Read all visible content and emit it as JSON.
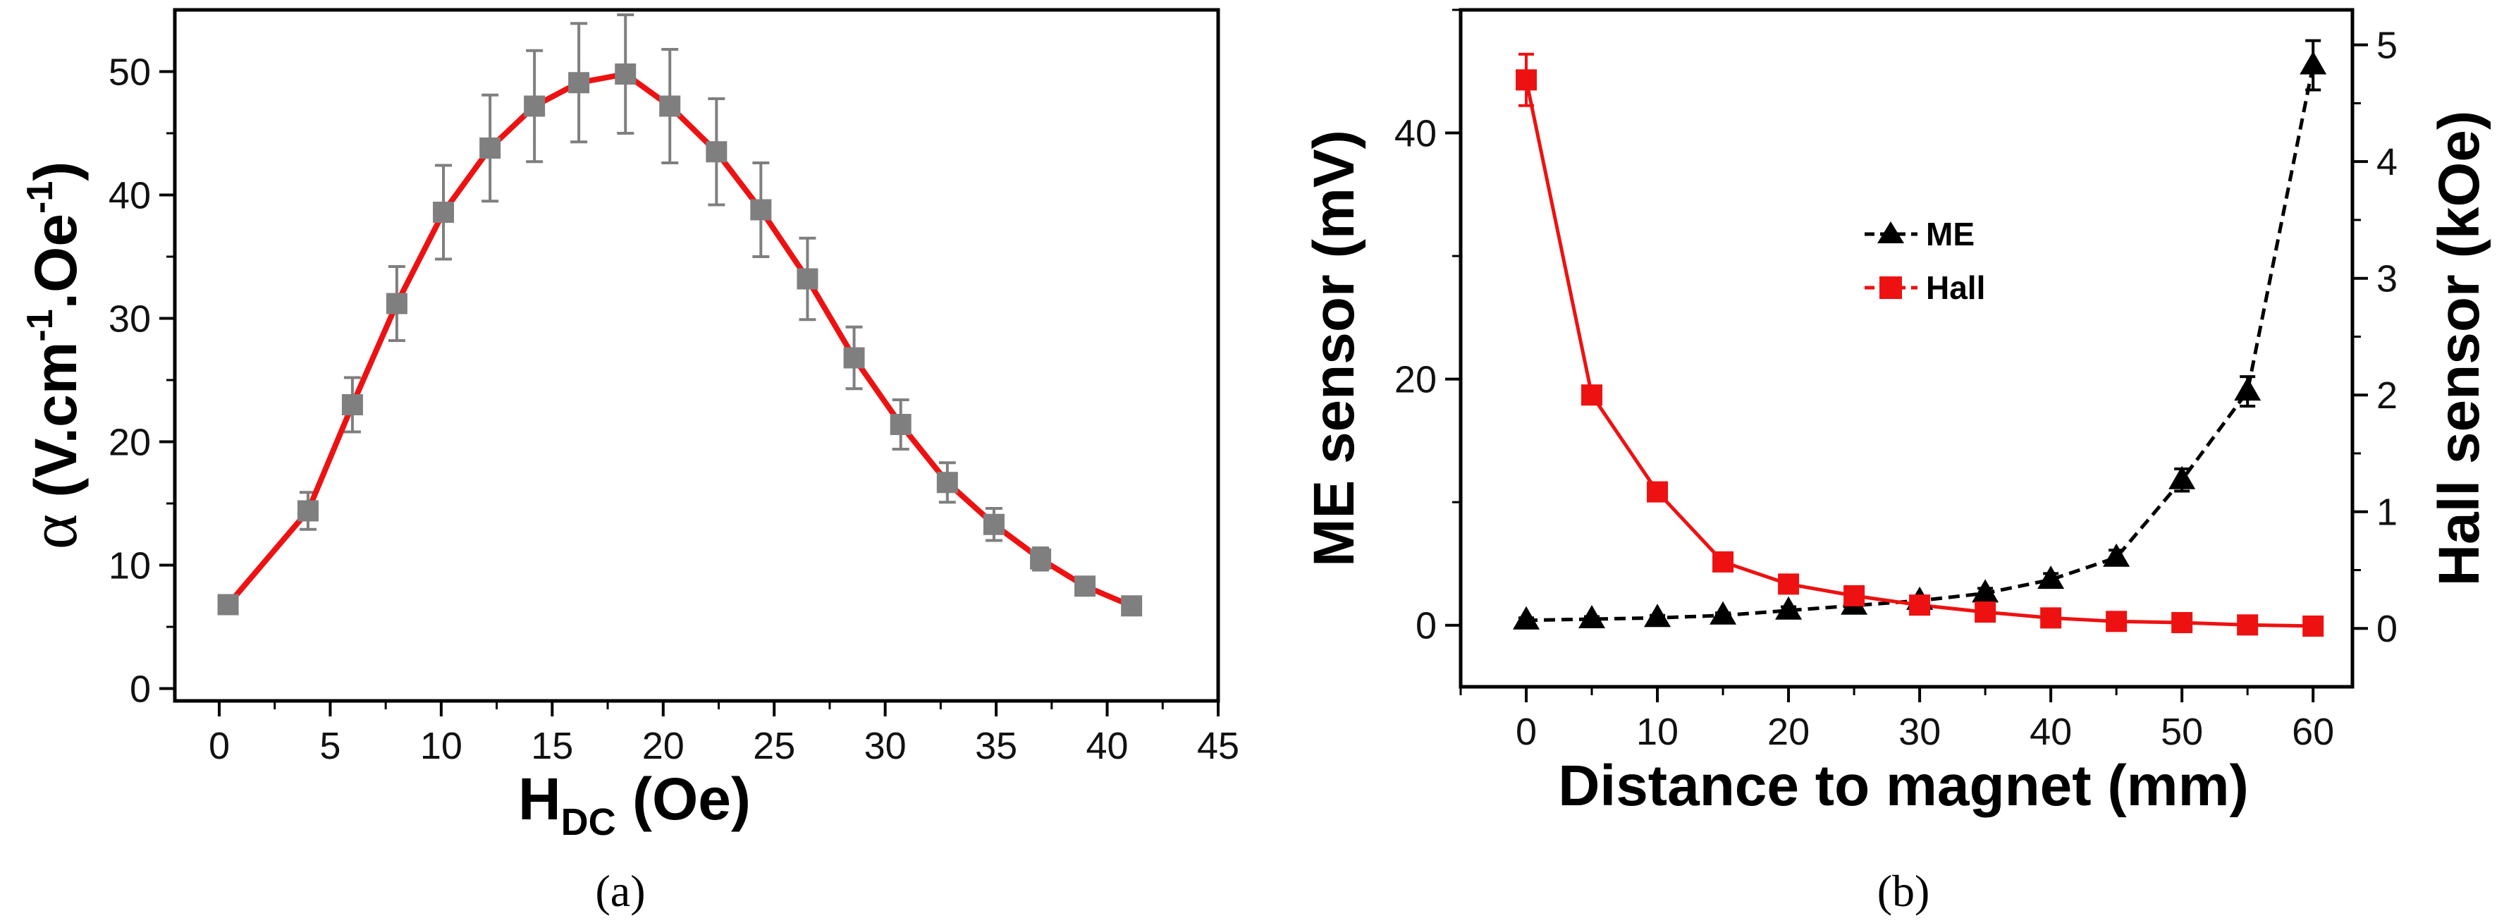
{
  "colors": {
    "red": "#ee1111",
    "gray_marker": "#7f7f7f",
    "black": "#000000",
    "hall": "#ee1111",
    "me": "#000000"
  },
  "chart_data": [
    {
      "id": "a",
      "type": "line",
      "caption": "(a)",
      "xlabel_main": "H",
      "xlabel_sub": "DC",
      "xlabel_tail": " (Oe)",
      "ylabel_symbol": "α",
      "ylabel_main": " (V.cm",
      "ylabel_sup1": "-1",
      "ylabel_mid": ".Oe",
      "ylabel_sup2": "-1",
      "ylabel_end": ")",
      "xlim": [
        -2,
        45
      ],
      "ylim": [
        -1,
        55
      ],
      "xticks": [
        0,
        5,
        10,
        15,
        20,
        25,
        30,
        35,
        40,
        45
      ],
      "yticks": [
        0,
        10,
        20,
        30,
        40,
        50
      ],
      "series": [
        {
          "name": "alpha",
          "x": [
            0.4,
            4,
            6,
            8,
            10.1,
            12.2,
            14.2,
            16.2,
            18.3,
            20.3,
            22.4,
            24.4,
            26.5,
            28.6,
            30.7,
            32.8,
            34.9,
            37,
            39,
            41.1
          ],
          "y": [
            6.8,
            14.4,
            23,
            31.2,
            38.6,
            43.8,
            47.2,
            49.1,
            49.8,
            47.2,
            43.5,
            38.8,
            33.2,
            26.8,
            21.4,
            16.7,
            13.3,
            10.5,
            8.3,
            6.7
          ],
          "err": [
            0.5,
            1.5,
            2.2,
            3,
            3.8,
            4.3,
            4.5,
            4.8,
            4.8,
            4.6,
            4.3,
            3.8,
            3.3,
            2.5,
            2,
            1.6,
            1.3,
            0.9,
            0.5,
            0.4
          ]
        }
      ]
    },
    {
      "id": "b",
      "type": "line",
      "caption": "(b)",
      "xlabel": "Distance to magnet (mm)",
      "ylabel_left": "ME sensor (mV)",
      "ylabel_right": "Hall sensor (kOe)",
      "xlim": [
        -5,
        63
      ],
      "ylim_left": [
        -5,
        50
      ],
      "ylim_right": [
        -0.5,
        5.3
      ],
      "xticks": [
        0,
        10,
        20,
        30,
        40,
        50,
        60
      ],
      "yticks_left": [
        0,
        20,
        40
      ],
      "yticks_right": [
        0,
        1,
        2,
        3,
        4,
        5
      ],
      "legend": [
        {
          "label": "ME",
          "marker": "triangle"
        },
        {
          "label": "Hall",
          "marker": "square"
        }
      ],
      "series": [
        {
          "name": "ME",
          "axis": "left",
          "x": [
            0,
            5,
            10,
            15,
            20,
            25,
            30,
            35,
            40,
            45,
            50,
            55,
            60
          ],
          "y": [
            0.4,
            0.5,
            0.6,
            0.8,
            1.2,
            1.6,
            2,
            2.6,
            3.7,
            5.5,
            11.8,
            19,
            45.5
          ],
          "err": [
            0.2,
            0.2,
            0.2,
            0.2,
            0.3,
            0.3,
            0.3,
            0.4,
            0.5,
            0.6,
            0.9,
            1.2,
            2
          ]
        },
        {
          "name": "Hall",
          "axis": "right",
          "x": [
            0,
            5,
            10,
            15,
            20,
            25,
            30,
            35,
            40,
            45,
            50,
            55,
            60
          ],
          "y": [
            4.7,
            2,
            1.17,
            0.57,
            0.38,
            0.28,
            0.2,
            0.14,
            0.09,
            0.06,
            0.05,
            0.03,
            0.02
          ],
          "err": [
            0.22,
            0.05,
            0.04,
            0.03,
            0.02,
            0.02,
            0.02,
            0.02,
            0.02,
            0.02,
            0.02,
            0.02,
            0.02
          ]
        }
      ]
    }
  ]
}
